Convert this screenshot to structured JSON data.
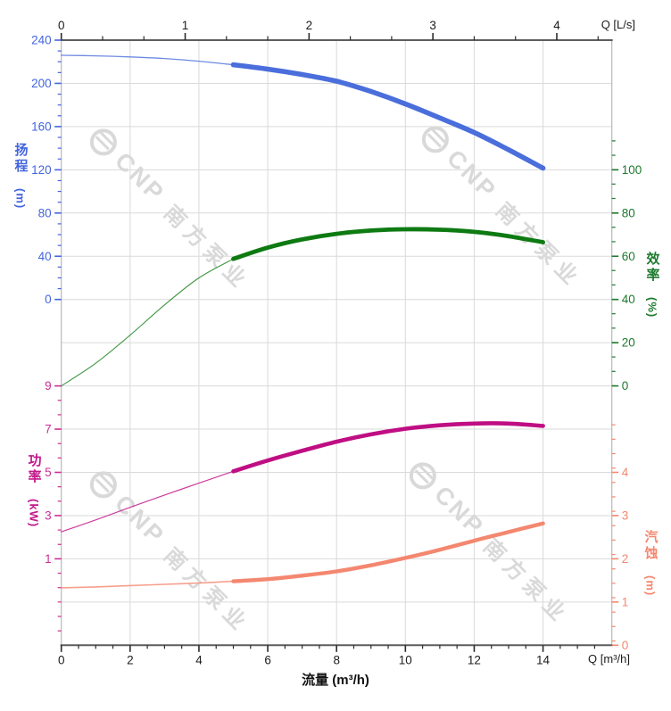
{
  "labels": {
    "top_right": "Q [L/s]",
    "bottom_right": "Q [m³/h]",
    "bottom_title": "流量 (m³/h)"
  },
  "axis_titles": {
    "head": {
      "text": "扬程",
      "unit": "(m)",
      "color": "#4365dd"
    },
    "power": {
      "text": "功率",
      "unit": "(kW)",
      "color": "#c2188c"
    },
    "efficiency": {
      "text": "效率",
      "unit": "(%)",
      "color": "#1d7a2e"
    },
    "npsh": {
      "text": "汽蚀",
      "unit": "(m)",
      "color": "#f4876f"
    }
  },
  "watermark": {
    "brand": "CNP",
    "company": "南方泵业"
  },
  "chart_data": {
    "type": "line",
    "title": "",
    "xlabel_bottom": "流量 (m³/h)",
    "xlabel_bottom_corner": "Q [m³/h]",
    "xlabel_top_corner": "Q [L/s]",
    "x_range_m3h": [
      0,
      16
    ],
    "x_ticks_m3h": [
      0,
      2,
      4,
      6,
      8,
      10,
      12,
      14
    ],
    "x_minor_step_m3h": 0.5,
    "top_x_range_ls": [
      0,
      4.44
    ],
    "top_x_ticks_ls": [
      0,
      1,
      2,
      3,
      4
    ],
    "grid": true,
    "duty_range_m3h": [
      5,
      14
    ],
    "x": [
      0,
      1,
      2,
      3,
      4,
      5,
      6,
      7,
      8,
      9,
      10,
      11,
      12,
      13,
      14
    ],
    "series": [
      {
        "id": "head",
        "name": "扬程",
        "unit": "m",
        "color": "#4a6edb",
        "label_color": "#4365dd",
        "axis_side": "left-upper",
        "axis_ticks": [
          240,
          200,
          160,
          120,
          80,
          40,
          0
        ],
        "values": [
          226,
          225.5,
          224.5,
          223,
          220.5,
          217.2,
          213.2,
          208.2,
          202,
          192.5,
          181,
          168,
          154.5,
          138.5,
          121.5
        ]
      },
      {
        "id": "efficiency",
        "name": "效率",
        "unit": "%",
        "color": "#0e7a12",
        "label_color": "#1d7a2e",
        "axis_side": "right-upper",
        "axis_ticks": [
          100,
          80,
          60,
          40,
          20,
          0
        ],
        "values": [
          0,
          10.5,
          23.5,
          37.5,
          50,
          58.8,
          64,
          67.8,
          70.4,
          71.9,
          72.5,
          72.3,
          71.3,
          69.3,
          66.5
        ]
      },
      {
        "id": "power",
        "name": "功率",
        "unit": "kW",
        "color": "#bf0e83",
        "label_color": "#cc2d96",
        "axis_side": "left-lower",
        "axis_ticks": [
          9,
          7,
          5,
          3,
          1
        ],
        "values": [
          2.25,
          2.8,
          3.38,
          3.95,
          4.5,
          5.05,
          5.55,
          6.0,
          6.42,
          6.76,
          7.02,
          7.18,
          7.26,
          7.26,
          7.15
        ]
      },
      {
        "id": "npsh",
        "name": "汽蚀",
        "unit": "m",
        "color": "#f4876f",
        "label_color": "#f4876f",
        "axis_side": "right-lower",
        "axis_ticks": [
          4,
          3,
          2,
          1,
          0
        ],
        "values": [
          1.33,
          1.35,
          1.38,
          1.41,
          1.44,
          1.48,
          1.53,
          1.61,
          1.71,
          1.85,
          2.02,
          2.21,
          2.42,
          2.62,
          2.82
        ]
      }
    ]
  }
}
